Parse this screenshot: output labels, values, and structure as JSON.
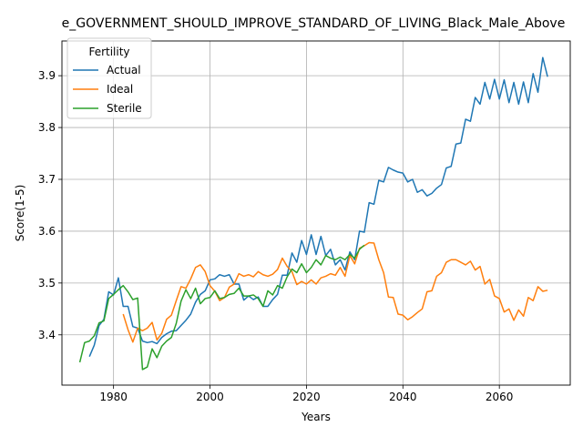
{
  "chart_data": {
    "type": "line",
    "title": "e_GOVERNMENT_SHOULD_IMPROVE_STANDARD_OF_LIVING_Black_Male_Above",
    "xlabel": "Years",
    "ylabel": "Score(1-5)",
    "xlim": [
      1969.3,
      2074.7
    ],
    "ylim": [
      3.303,
      3.967
    ],
    "xticks": [
      1980,
      2000,
      2020,
      2040,
      2060
    ],
    "yticks": [
      3.4,
      3.5,
      3.6,
      3.7,
      3.8,
      3.9
    ],
    "grid": true,
    "legend": {
      "title": "Fertility",
      "position": "top-left"
    },
    "series": [
      {
        "name": "Actual",
        "color": "#1f77b4",
        "x": [
          1975,
          1976,
          1977,
          1978,
          1979,
          1980,
          1981,
          1982,
          1983,
          1984,
          1985,
          1986,
          1987,
          1988,
          1989,
          1990,
          1991,
          1992,
          1993,
          1994,
          1995,
          1996,
          1997,
          1998,
          1999,
          2000,
          2001,
          2002,
          2003,
          2004,
          2005,
          2006,
          2007,
          2008,
          2009,
          2010,
          2011,
          2012,
          2013,
          2014,
          2015,
          2016,
          2017,
          2018,
          2019,
          2020,
          2021,
          2022,
          2023,
          2024,
          2025,
          2026,
          2027,
          2028,
          2029,
          2030,
          2031,
          2032,
          2033,
          2034,
          2035,
          2036,
          2037,
          2038,
          2039,
          2040,
          2041,
          2042,
          2043,
          2044,
          2045,
          2046,
          2047,
          2048,
          2049,
          2050,
          2051,
          2052,
          2053,
          2054,
          2055,
          2056,
          2057,
          2058,
          2059,
          2060,
          2061,
          2062,
          2063,
          2064,
          2065,
          2066,
          2067,
          2068,
          2069,
          2070
        ],
        "y": [
          3.358,
          3.38,
          3.418,
          3.43,
          3.483,
          3.477,
          3.51,
          3.455,
          3.455,
          3.416,
          3.413,
          3.388,
          3.385,
          3.387,
          3.383,
          3.395,
          3.402,
          3.407,
          3.408,
          3.418,
          3.428,
          3.44,
          3.463,
          3.478,
          3.485,
          3.506,
          3.508,
          3.516,
          3.513,
          3.516,
          3.498,
          3.498,
          3.467,
          3.475,
          3.468,
          3.473,
          3.455,
          3.455,
          3.468,
          3.478,
          3.515,
          3.515,
          3.558,
          3.54,
          3.582,
          3.555,
          3.593,
          3.555,
          3.59,
          3.553,
          3.565,
          3.535,
          3.545,
          3.525,
          3.56,
          3.545,
          3.6,
          3.598,
          3.655,
          3.652,
          3.698,
          3.695,
          3.723,
          3.718,
          3.714,
          3.712,
          3.695,
          3.7,
          3.675,
          3.68,
          3.668,
          3.673,
          3.683,
          3.69,
          3.722,
          3.725,
          3.768,
          3.77,
          3.816,
          3.812,
          3.858,
          3.845,
          3.887,
          3.855,
          3.893,
          3.855,
          3.892,
          3.848,
          3.887,
          3.845,
          3.888,
          3.848,
          3.904,
          3.868,
          3.935,
          3.898
        ]
      },
      {
        "name": "Ideal",
        "color": "#ff7f0e",
        "x": [
          1982,
          1983,
          1984,
          1985,
          1986,
          1987,
          1988,
          1989,
          1990,
          1991,
          1992,
          1993,
          1994,
          1995,
          1996,
          1997,
          1998,
          1999,
          2000,
          2001,
          2002,
          2003,
          2004,
          2005,
          2006,
          2007,
          2008,
          2009,
          2010,
          2011,
          2012,
          2013,
          2014,
          2015,
          2016,
          2017,
          2018,
          2019,
          2020,
          2021,
          2022,
          2023,
          2024,
          2025,
          2026,
          2027,
          2028,
          2029,
          2030,
          2031,
          2032,
          2033,
          2034,
          2035,
          2036,
          2037,
          2038,
          2039,
          2040,
          2041,
          2042,
          2043,
          2044,
          2045,
          2046,
          2047,
          2048,
          2049,
          2050,
          2051,
          2052,
          2053,
          2054,
          2055,
          2056,
          2057,
          2058,
          2059,
          2060,
          2061,
          2062,
          2063,
          2064,
          2065,
          2066,
          2067,
          2068,
          2069,
          2070
        ],
        "y": [
          3.44,
          3.41,
          3.386,
          3.413,
          3.408,
          3.413,
          3.424,
          3.39,
          3.403,
          3.43,
          3.438,
          3.466,
          3.493,
          3.49,
          3.508,
          3.53,
          3.535,
          3.522,
          3.495,
          3.484,
          3.466,
          3.472,
          3.492,
          3.498,
          3.518,
          3.513,
          3.516,
          3.512,
          3.522,
          3.516,
          3.513,
          3.517,
          3.526,
          3.548,
          3.532,
          3.522,
          3.497,
          3.503,
          3.498,
          3.506,
          3.498,
          3.51,
          3.513,
          3.518,
          3.515,
          3.53,
          3.513,
          3.553,
          3.537,
          3.567,
          3.572,
          3.578,
          3.577,
          3.545,
          3.52,
          3.473,
          3.472,
          3.44,
          3.438,
          3.429,
          3.435,
          3.443,
          3.45,
          3.483,
          3.485,
          3.513,
          3.52,
          3.54,
          3.545,
          3.545,
          3.54,
          3.535,
          3.542,
          3.525,
          3.532,
          3.498,
          3.507,
          3.475,
          3.47,
          3.444,
          3.45,
          3.428,
          3.448,
          3.436,
          3.472,
          3.466,
          3.493,
          3.484,
          3.486
        ]
      },
      {
        "name": "Sterile",
        "color": "#2ca02c",
        "x": [
          1973,
          1974,
          1975,
          1976,
          1977,
          1978,
          1979,
          1980,
          1981,
          1982,
          1983,
          1984,
          1985,
          1986,
          1987,
          1988,
          1989,
          1990,
          1991,
          1992,
          1993,
          1994,
          1995,
          1996,
          1997,
          1998,
          1999,
          2000,
          2001,
          2002,
          2003,
          2004,
          2005,
          2006,
          2007,
          2008,
          2009,
          2010,
          2011,
          2012,
          2013,
          2014,
          2015,
          2016,
          2017,
          2018,
          2019,
          2020,
          2021,
          2022,
          2023,
          2024,
          2025,
          2026,
          2027,
          2028,
          2029,
          2030,
          2031,
          2032
        ],
        "y": [
          3.347,
          3.385,
          3.388,
          3.398,
          3.423,
          3.427,
          3.47,
          3.478,
          3.487,
          3.495,
          3.483,
          3.468,
          3.471,
          3.333,
          3.338,
          3.373,
          3.356,
          3.378,
          3.388,
          3.395,
          3.422,
          3.465,
          3.487,
          3.47,
          3.49,
          3.46,
          3.47,
          3.472,
          3.485,
          3.47,
          3.472,
          3.478,
          3.48,
          3.49,
          3.475,
          3.475,
          3.477,
          3.47,
          3.455,
          3.485,
          3.477,
          3.495,
          3.49,
          3.512,
          3.527,
          3.52,
          3.537,
          3.52,
          3.53,
          3.545,
          3.535,
          3.553,
          3.548,
          3.545,
          3.55,
          3.545,
          3.555,
          3.548,
          3.565,
          3.573
        ]
      }
    ]
  }
}
